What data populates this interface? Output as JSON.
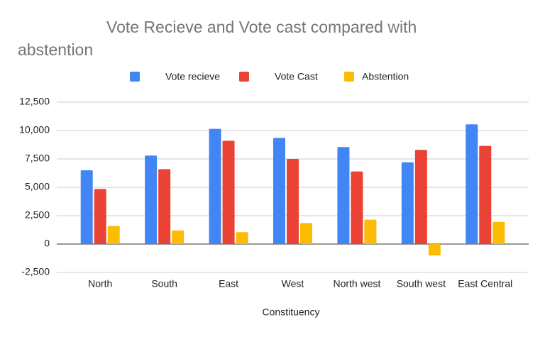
{
  "chart_data": {
    "type": "bar",
    "title": "Vote Recieve and Vote cast compared with abstention",
    "x_label": "Constituency",
    "categories": [
      "North",
      "South",
      "East",
      "West",
      "North west",
      "South west",
      "East Central"
    ],
    "series": [
      {
        "name": "Vote recieve",
        "color": "#4285f4",
        "values": [
          6500,
          7800,
          10150,
          9350,
          8550,
          7200,
          10550
        ]
      },
      {
        "name": "Vote Cast",
        "color": "#ea4335",
        "values": [
          4850,
          6600,
          9100,
          7500,
          6400,
          8300,
          8650
        ]
      },
      {
        "name": "Abstention",
        "color": "#fbbc04",
        "values": [
          1600,
          1200,
          1050,
          1850,
          2150,
          -1000,
          1950
        ]
      }
    ],
    "ylim": [
      -2500,
      12500
    ],
    "yticks": [
      {
        "value": -2500,
        "label": "-2,500"
      },
      0,
      {
        "value": 2500,
        "label": "2,500"
      },
      {
        "value": 5000,
        "label": "5,000"
      },
      {
        "value": 7500,
        "label": "7,500"
      },
      {
        "value": 10000,
        "label": "10,000"
      },
      {
        "value": 12500,
        "label": "12,500"
      }
    ],
    "grid": true,
    "legend": "top"
  }
}
